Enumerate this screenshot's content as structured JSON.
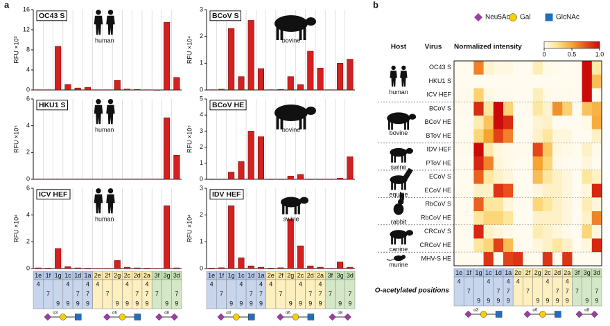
{
  "panel_labels": [
    "a",
    "b"
  ],
  "legend": [
    {
      "name": "Neu5Ac",
      "color": "#9b3fa0",
      "shape": "diamond"
    },
    {
      "name": "Gal",
      "color": "#f5d000",
      "shape": "circle"
    },
    {
      "name": "GlcNAc",
      "color": "#1f6fc0",
      "shape": "square"
    }
  ],
  "glycan_table": {
    "title": "O-acetylated positions",
    "categories": [
      "1e",
      "1f",
      "1g",
      "1c",
      "1d",
      "1a",
      "2e",
      "2f",
      "2g",
      "2c",
      "2d",
      "2a",
      "3f",
      "3g",
      "3d"
    ],
    "group_colors": {
      "1": "#b4c7e7",
      "2": "#fde9a9",
      "3": "#c5e0b4"
    },
    "position_rows": [
      [
        4,
        null,
        null,
        4,
        null,
        4,
        4,
        null,
        null,
        4,
        null,
        4,
        null,
        null,
        null
      ],
      [
        null,
        7,
        null,
        null,
        7,
        7,
        null,
        7,
        null,
        null,
        7,
        7,
        7,
        null,
        7
      ],
      [
        null,
        null,
        9,
        9,
        9,
        9,
        null,
        null,
        9,
        9,
        9,
        9,
        null,
        9,
        9
      ]
    ],
    "linkages": [
      "α3",
      "α6",
      "α8"
    ]
  },
  "chart_data": [
    {
      "type": "bar",
      "title": "OC43 S",
      "host": "human",
      "y_label": "RFU ×10³",
      "color": "#d42020",
      "ylim": [
        0,
        16
      ],
      "yticks": [
        0,
        4,
        8,
        12,
        16
      ],
      "values": [
        0.05,
        0.05,
        8.7,
        1.1,
        0.4,
        0.5,
        0.05,
        0.05,
        1.9,
        0.2,
        0.1,
        0.05,
        0.02,
        13.5,
        2.5
      ]
    },
    {
      "type": "bar",
      "title": "HKU1 S",
      "host": "human",
      "y_label": "RFU ×10⁵",
      "color": "#d42020",
      "ylim": [
        0,
        6
      ],
      "yticks": [
        0,
        2,
        4,
        6
      ],
      "values": [
        0.02,
        0.02,
        0.02,
        0.02,
        0.02,
        0.02,
        0.02,
        0.02,
        0.02,
        0.02,
        0.02,
        0.02,
        0.02,
        4.6,
        1.8
      ]
    },
    {
      "type": "bar",
      "title": "ICV HEF",
      "host": "human",
      "y_label": "RFU ×10⁴",
      "color": "#d42020",
      "ylim": [
        0,
        6
      ],
      "yticks": [
        0,
        2,
        4,
        6
      ],
      "values": [
        0.05,
        0.03,
        1.5,
        0.15,
        0.05,
        0.03,
        0.02,
        0.02,
        0.6,
        0.1,
        0.05,
        0.03,
        0.02,
        4.7,
        0.05
      ]
    },
    {
      "type": "bar",
      "title": "BCoV S",
      "host": "bovine",
      "y_label": "RFU ×10⁴",
      "color": "#d42020",
      "ylim": [
        0,
        3
      ],
      "yticks": [
        0,
        1,
        2,
        3
      ],
      "values": [
        0.01,
        0.03,
        2.3,
        0.5,
        2.6,
        0.8,
        0.01,
        0.02,
        0.5,
        0.2,
        1.45,
        0.82,
        0.01,
        1.0,
        1.15
      ]
    },
    {
      "type": "bar",
      "title": "BCoV HE",
      "host": "bovine",
      "y_label": "RFU ×10⁵",
      "color": "#d42020",
      "ylim": [
        0,
        5
      ],
      "yticks": [
        0,
        1,
        2,
        3,
        4,
        5
      ],
      "values": [
        0.01,
        0.01,
        0.45,
        1.1,
        3.0,
        2.65,
        0.01,
        0.01,
        0.2,
        0.3,
        0.01,
        0.01,
        0.01,
        0.07,
        1.4
      ]
    },
    {
      "type": "bar",
      "title": "IDV HEF",
      "host": "swine",
      "y_label": "RFU ×10⁴",
      "color": "#d42020",
      "ylim": [
        0,
        3
      ],
      "yticks": [
        0,
        1,
        2,
        3
      ],
      "values": [
        0.02,
        0.03,
        2.35,
        0.4,
        0.1,
        0.05,
        0.02,
        0.03,
        1.85,
        0.85,
        0.1,
        0.05,
        0.01,
        0.25,
        0.05
      ]
    },
    {
      "type": "heatmap",
      "host_header": "Host",
      "virus_header": "Virus",
      "colorbar_title": "Normalized intensity",
      "clim": [
        0,
        1
      ],
      "colorbar_ticks": [
        0,
        0.5,
        {
          "value": 1,
          "label": "1.0"
        }
      ],
      "colormap": [
        "#fffbef",
        "#fde28a",
        "#f7a431",
        "#e8501c",
        "#cc0a0a"
      ],
      "groups": [
        {
          "host": "human",
          "rows": [
            {
              "name": "OC43 S",
              "values": [
                0,
                0,
                0.6,
                0.08,
                0.03,
                0.04,
                0,
                0,
                0.14,
                0.02,
                0.01,
                0,
                0,
                1,
                0.18
              ]
            },
            {
              "name": "HKU1 S",
              "values": [
                0,
                0,
                0,
                0,
                0,
                0,
                0,
                0,
                0,
                0,
                0,
                0,
                0,
                1,
                0.4
              ]
            },
            {
              "name": "ICV HEF",
              "values": [
                0.01,
                0.01,
                0.32,
                0.03,
                0.01,
                0.01,
                0,
                0,
                0.13,
                0.02,
                0.01,
                0.01,
                0,
                1,
                0.01
              ]
            }
          ]
        },
        {
          "host": "bovine",
          "rows": [
            {
              "name": "BCoV S",
              "values": [
                0.01,
                0.01,
                0.88,
                0.19,
                1,
                0.31,
                0,
                0.01,
                0.19,
                0.08,
                0.56,
                0.32,
                0,
                0.38,
                0.44
              ]
            },
            {
              "name": "BCoV HE",
              "values": [
                0,
                0,
                0.15,
                0.37,
                1,
                0.88,
                0,
                0,
                0.07,
                0.1,
                0,
                0,
                0,
                0.02,
                0.47
              ]
            },
            {
              "name": "BToV HE",
              "values": [
                0,
                0,
                0.3,
                0.5,
                0.8,
                0.6,
                0,
                0,
                0.1,
                0.2,
                0.05,
                0.05,
                0,
                0,
                0.1
              ]
            }
          ]
        },
        {
          "host": "swine",
          "rows": [
            {
              "name": "IDV HEF",
              "values": [
                0.01,
                0.01,
                1,
                0.17,
                0.04,
                0.02,
                0.01,
                0.01,
                0.79,
                0.36,
                0.04,
                0.02,
                0,
                0.1,
                0.02
              ]
            },
            {
              "name": "PToV HE",
              "values": [
                0,
                0,
                0.9,
                0.6,
                0.05,
                0.02,
                0,
                0,
                0.5,
                0.3,
                0.02,
                0,
                0,
                0.05,
                0
              ]
            }
          ]
        },
        {
          "host": "equine",
          "rows": [
            {
              "name": "ECoV S",
              "values": [
                0,
                0,
                0.7,
                0.2,
                0.1,
                0.05,
                0,
                0,
                0.4,
                0.2,
                0.1,
                0.05,
                0,
                0.2,
                0.1
              ]
            },
            {
              "name": "ECoV HE",
              "values": [
                0,
                0,
                0.1,
                0.1,
                0.85,
                0.75,
                0,
                0,
                0.05,
                0.1,
                0.1,
                0.05,
                0,
                0.05,
                0.9
              ]
            }
          ]
        },
        {
          "host": "rabbit",
          "rows": [
            {
              "name": "RbCoV S",
              "values": [
                0,
                0,
                0.7,
                0.2,
                0.2,
                0.05,
                0,
                0,
                0.3,
                0.2,
                0.1,
                0.05,
                0,
                0.15,
                0.05
              ]
            },
            {
              "name": "RbCoV HE",
              "values": [
                0,
                0,
                0.2,
                0.3,
                0.3,
                0.2,
                0,
                0,
                0.1,
                0.1,
                0.1,
                0.05,
                0,
                0.1,
                0.6
              ]
            }
          ]
        },
        {
          "host": "canine",
          "rows": [
            {
              "name": "CRCoV S",
              "values": [
                0,
                0,
                0.9,
                0.1,
                0.05,
                0.02,
                0,
                0,
                0.15,
                0.1,
                0.05,
                0.02,
                0,
                0.3,
                0.05
              ]
            },
            {
              "name": "CRCoV HE",
              "values": [
                0,
                0,
                0.2,
                0.3,
                0.8,
                0.4,
                0,
                0,
                0.05,
                0.1,
                0.2,
                0.1,
                0,
                0.05,
                0.9
              ]
            }
          ]
        },
        {
          "host": "murine",
          "rows": [
            {
              "name": "MHV-S HE",
              "values": [
                0,
                0,
                0,
                0.85,
                0,
                0.8,
                0.85,
                0,
                0,
                0.85,
                0,
                0.85,
                0,
                0,
                0
              ]
            }
          ]
        }
      ]
    }
  ]
}
